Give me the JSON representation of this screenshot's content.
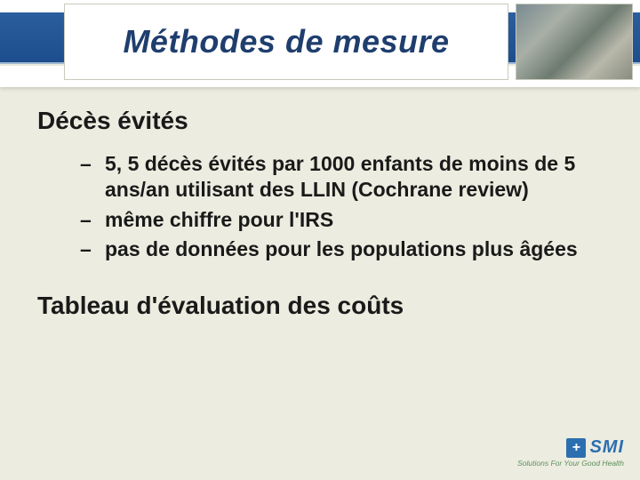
{
  "colors": {
    "background": "#ecece0",
    "band_blue_top": "#2b5e9e",
    "band_blue_bottom": "#1d4d8c",
    "title_text": "#1f3e6e",
    "body_text": "#1a1a1a",
    "logo_blue": "#2b6fb0",
    "logo_green": "#5d8f5d"
  },
  "typography": {
    "title_fontsize": 36,
    "heading_fontsize": 28,
    "bullet_fontsize": 23,
    "title_italic": true,
    "body_bold": true
  },
  "title": "Méthodes de mesure",
  "section_heading": "Décès évités",
  "bullets": [
    "5, 5 décès évités par 1000 enfants de moins de 5 ans/an utilisant des LLIN (Cochrane review)",
    "même chiffre pour l'IRS",
    "pas de données pour les populations plus âgées"
  ],
  "footer_heading": "Tableau d'évaluation des coûts",
  "logo": {
    "mark": "+",
    "name": "SMI",
    "tagline": "Solutions For Your Good Health"
  }
}
